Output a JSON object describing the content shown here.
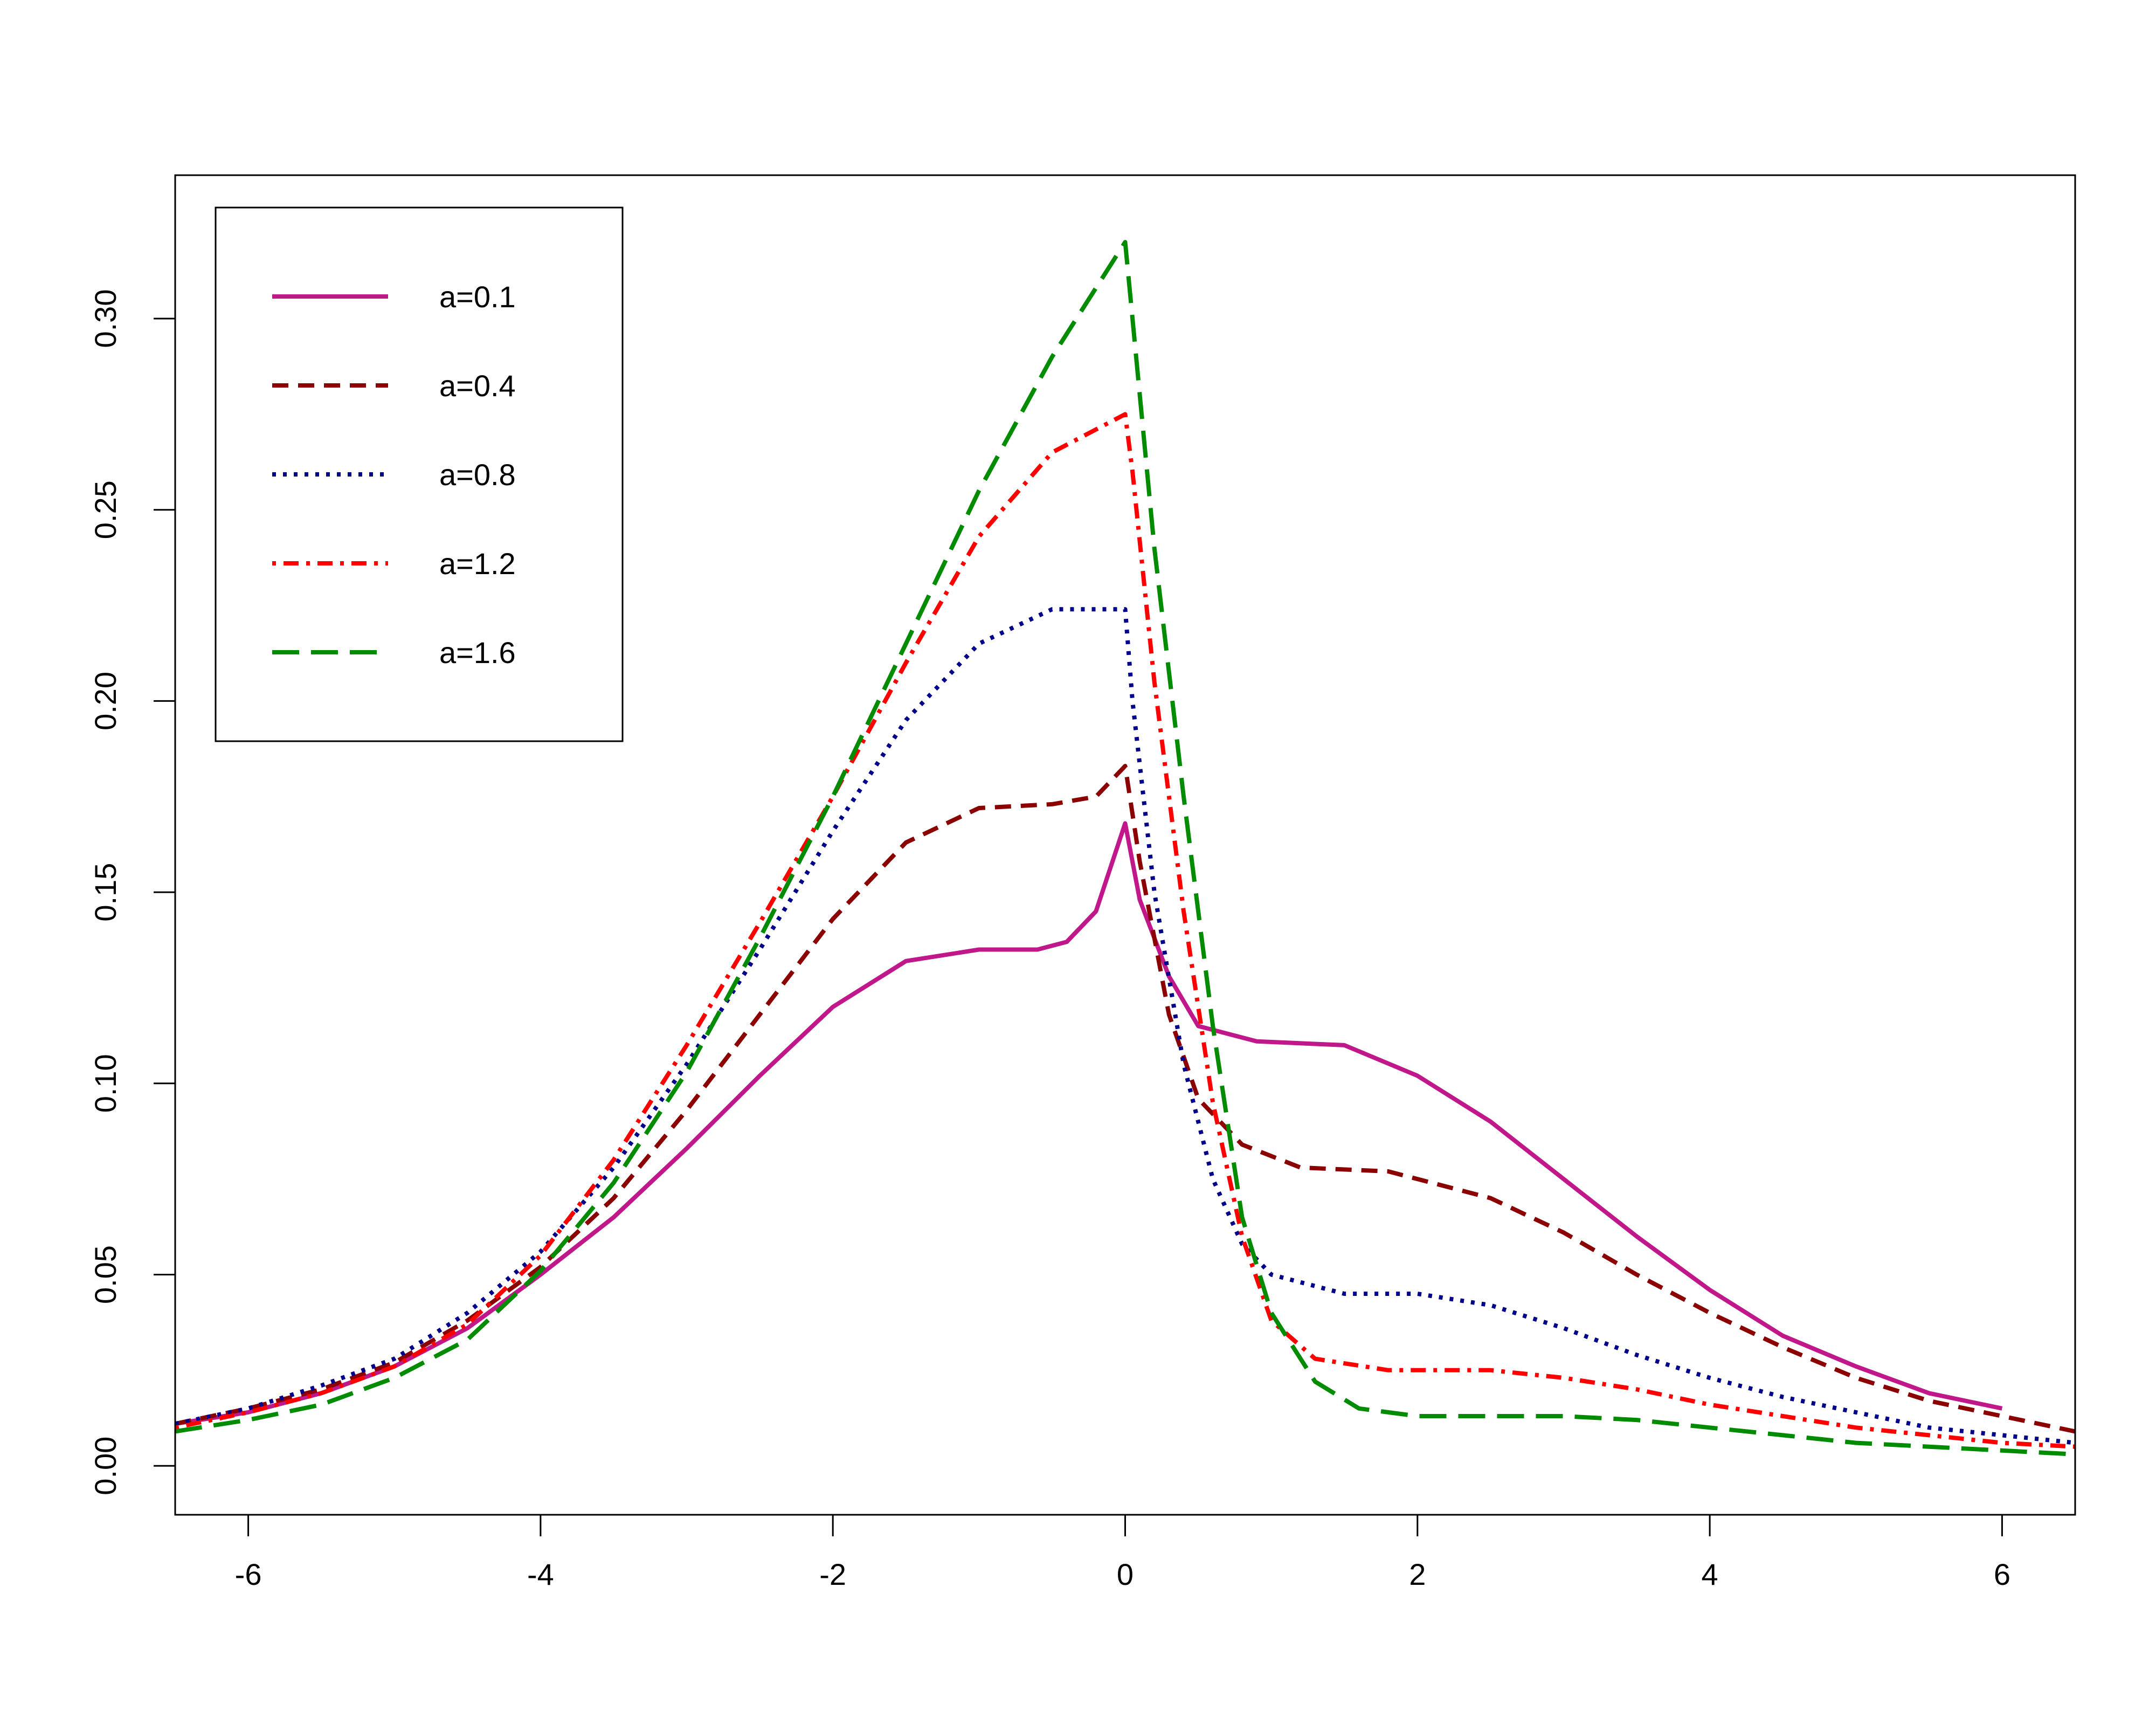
{
  "chart_data": {
    "type": "line",
    "title": "",
    "xlabel": "",
    "ylabel": "",
    "xlim": [
      -6.5,
      6.5
    ],
    "ylim": [
      -0.0128,
      0.3375
    ],
    "x_ticks": [
      -6,
      -4,
      -2,
      0,
      2,
      4,
      6
    ],
    "x_tick_labels": [
      "-6",
      "-4",
      "-2",
      "0",
      "2",
      "4",
      "6"
    ],
    "y_ticks": [
      0.0,
      0.05,
      0.1,
      0.15,
      0.2,
      0.25,
      0.3
    ],
    "y_tick_labels": [
      "0.00",
      "0.05",
      "0.10",
      "0.15",
      "0.20",
      "0.25",
      "0.30"
    ],
    "grid": false,
    "legend_position": "top-left",
    "series": [
      {
        "name": "a=0.1",
        "color": "#c0188a",
        "dash": "solid",
        "points": [
          [
            -6.5,
            0.011
          ],
          [
            -6,
            0.014
          ],
          [
            -5.5,
            0.019
          ],
          [
            -5,
            0.026
          ],
          [
            -4.5,
            0.036
          ],
          [
            -4,
            0.05
          ],
          [
            -3.5,
            0.065
          ],
          [
            -3,
            0.083
          ],
          [
            -2.5,
            0.102
          ],
          [
            -2,
            0.12
          ],
          [
            -1.5,
            0.132
          ],
          [
            -1,
            0.135
          ],
          [
            -0.6,
            0.135
          ],
          [
            -0.4,
            0.137
          ],
          [
            -0.2,
            0.145
          ],
          [
            0,
            0.168
          ],
          [
            0.1,
            0.148
          ],
          [
            0.3,
            0.128
          ],
          [
            0.5,
            0.115
          ],
          [
            0.9,
            0.111
          ],
          [
            1.5,
            0.11
          ],
          [
            2,
            0.102
          ],
          [
            2.5,
            0.09
          ],
          [
            3,
            0.075
          ],
          [
            3.5,
            0.06
          ],
          [
            4,
            0.046
          ],
          [
            4.5,
            0.034
          ],
          [
            5,
            0.026
          ],
          [
            5.5,
            0.019
          ],
          [
            6,
            0.015
          ]
        ]
      },
      {
        "name": "a=0.4",
        "color": "#8b0000",
        "dash": "dashed",
        "points": [
          [
            -6.5,
            0.011
          ],
          [
            -6,
            0.015
          ],
          [
            -5.5,
            0.02
          ],
          [
            -5,
            0.027
          ],
          [
            -4.5,
            0.038
          ],
          [
            -4,
            0.052
          ],
          [
            -3.5,
            0.07
          ],
          [
            -3,
            0.093
          ],
          [
            -2.5,
            0.118
          ],
          [
            -2,
            0.143
          ],
          [
            -1.5,
            0.163
          ],
          [
            -1,
            0.172
          ],
          [
            -0.5,
            0.173
          ],
          [
            -0.2,
            0.175
          ],
          [
            0,
            0.183
          ],
          [
            0.1,
            0.158
          ],
          [
            0.3,
            0.118
          ],
          [
            0.5,
            0.096
          ],
          [
            0.8,
            0.084
          ],
          [
            1.2,
            0.078
          ],
          [
            1.8,
            0.077
          ],
          [
            2.5,
            0.07
          ],
          [
            3,
            0.061
          ],
          [
            3.5,
            0.05
          ],
          [
            4,
            0.04
          ],
          [
            4.5,
            0.031
          ],
          [
            5,
            0.023
          ],
          [
            5.5,
            0.017
          ],
          [
            6,
            0.013
          ],
          [
            6.5,
            0.009
          ]
        ]
      },
      {
        "name": "a=0.8",
        "color": "#00008b",
        "dash": "dotted",
        "points": [
          [
            -6.5,
            0.011
          ],
          [
            -6,
            0.015
          ],
          [
            -5.5,
            0.021
          ],
          [
            -5,
            0.028
          ],
          [
            -4.5,
            0.04
          ],
          [
            -4,
            0.056
          ],
          [
            -3.5,
            0.078
          ],
          [
            -3,
            0.105
          ],
          [
            -2.5,
            0.135
          ],
          [
            -2,
            0.166
          ],
          [
            -1.5,
            0.195
          ],
          [
            -1,
            0.215
          ],
          [
            -0.5,
            0.224
          ],
          [
            0,
            0.224
          ],
          [
            0.05,
            0.2
          ],
          [
            0.2,
            0.15
          ],
          [
            0.4,
            0.105
          ],
          [
            0.6,
            0.075
          ],
          [
            0.8,
            0.058
          ],
          [
            1,
            0.05
          ],
          [
            1.5,
            0.045
          ],
          [
            2,
            0.045
          ],
          [
            2.5,
            0.042
          ],
          [
            3,
            0.036
          ],
          [
            3.5,
            0.029
          ],
          [
            4,
            0.023
          ],
          [
            4.5,
            0.018
          ],
          [
            5,
            0.014
          ],
          [
            5.5,
            0.01
          ],
          [
            6,
            0.008
          ],
          [
            6.5,
            0.006
          ]
        ]
      },
      {
        "name": "a=1.2",
        "color": "#ff0000",
        "dash": "dashdot",
        "points": [
          [
            -6.5,
            0.01
          ],
          [
            -6,
            0.014
          ],
          [
            -5.5,
            0.019
          ],
          [
            -5,
            0.026
          ],
          [
            -4.5,
            0.037
          ],
          [
            -4,
            0.055
          ],
          [
            -3.5,
            0.08
          ],
          [
            -3,
            0.11
          ],
          [
            -2.5,
            0.142
          ],
          [
            -2,
            0.175
          ],
          [
            -1.5,
            0.21
          ],
          [
            -1,
            0.243
          ],
          [
            -0.5,
            0.265
          ],
          [
            0,
            0.275
          ],
          [
            0.05,
            0.26
          ],
          [
            0.2,
            0.205
          ],
          [
            0.4,
            0.145
          ],
          [
            0.6,
            0.095
          ],
          [
            0.8,
            0.06
          ],
          [
            1,
            0.038
          ],
          [
            1.3,
            0.028
          ],
          [
            1.8,
            0.025
          ],
          [
            2.5,
            0.025
          ],
          [
            3,
            0.023
          ],
          [
            3.5,
            0.02
          ],
          [
            4,
            0.016
          ],
          [
            4.5,
            0.013
          ],
          [
            5,
            0.01
          ],
          [
            5.5,
            0.008
          ],
          [
            6,
            0.006
          ],
          [
            6.5,
            0.005
          ]
        ]
      },
      {
        "name": "a=1.6",
        "color": "#008b00",
        "dash": "longdash",
        "points": [
          [
            -6.5,
            0.009
          ],
          [
            -6,
            0.012
          ],
          [
            -5.5,
            0.016
          ],
          [
            -5,
            0.023
          ],
          [
            -4.5,
            0.033
          ],
          [
            -4,
            0.051
          ],
          [
            -3.5,
            0.074
          ],
          [
            -3,
            0.103
          ],
          [
            -2.5,
            0.138
          ],
          [
            -2,
            0.175
          ],
          [
            -1.5,
            0.215
          ],
          [
            -1,
            0.255
          ],
          [
            -0.5,
            0.29
          ],
          [
            0,
            0.32
          ],
          [
            0.05,
            0.3
          ],
          [
            0.2,
            0.24
          ],
          [
            0.4,
            0.175
          ],
          [
            0.6,
            0.115
          ],
          [
            0.8,
            0.065
          ],
          [
            1,
            0.04
          ],
          [
            1.3,
            0.022
          ],
          [
            1.6,
            0.015
          ],
          [
            2,
            0.013
          ],
          [
            2.5,
            0.013
          ],
          [
            3,
            0.013
          ],
          [
            3.5,
            0.012
          ],
          [
            4,
            0.01
          ],
          [
            4.5,
            0.008
          ],
          [
            5,
            0.006
          ],
          [
            5.5,
            0.005
          ],
          [
            6,
            0.004
          ],
          [
            6.5,
            0.003
          ]
        ]
      }
    ]
  }
}
